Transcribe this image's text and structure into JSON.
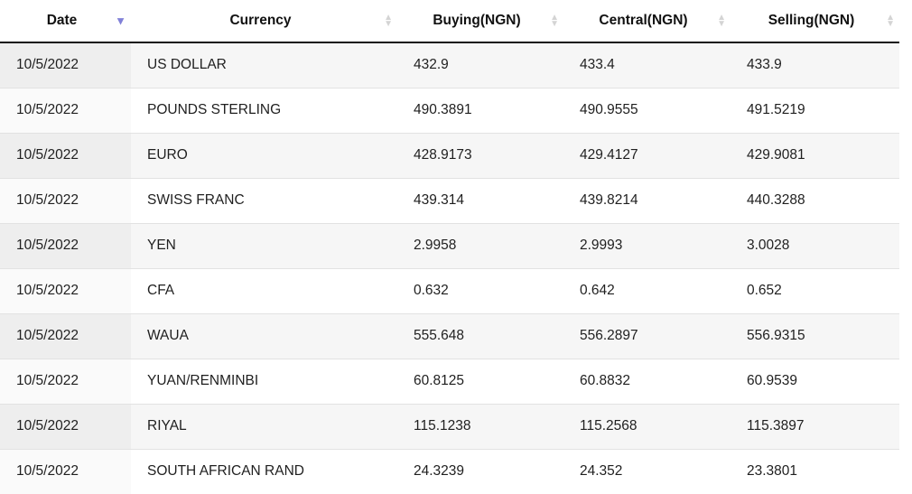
{
  "table": {
    "columns": [
      {
        "key": "date",
        "label": "Date",
        "sort": "desc"
      },
      {
        "key": "currency",
        "label": "Currency",
        "sort": "none"
      },
      {
        "key": "buying",
        "label": "Buying(NGN)",
        "sort": "none"
      },
      {
        "key": "central",
        "label": "Central(NGN)",
        "sort": "none"
      },
      {
        "key": "selling",
        "label": "Selling(NGN)",
        "sort": "none"
      }
    ],
    "rows": [
      {
        "date": "10/5/2022",
        "currency": "US DOLLAR",
        "buying": "432.9",
        "central": "433.4",
        "selling": "433.9"
      },
      {
        "date": "10/5/2022",
        "currency": "POUNDS STERLING",
        "buying": "490.3891",
        "central": "490.9555",
        "selling": "491.5219"
      },
      {
        "date": "10/5/2022",
        "currency": "EURO",
        "buying": "428.9173",
        "central": "429.4127",
        "selling": "429.9081"
      },
      {
        "date": "10/5/2022",
        "currency": "SWISS FRANC",
        "buying": "439.314",
        "central": "439.8214",
        "selling": "440.3288"
      },
      {
        "date": "10/5/2022",
        "currency": "YEN",
        "buying": "2.9958",
        "central": "2.9993",
        "selling": "3.0028"
      },
      {
        "date": "10/5/2022",
        "currency": "CFA",
        "buying": "0.632",
        "central": "0.642",
        "selling": "0.652"
      },
      {
        "date": "10/5/2022",
        "currency": "WAUA",
        "buying": "555.648",
        "central": "556.2897",
        "selling": "556.9315"
      },
      {
        "date": "10/5/2022",
        "currency": "YUAN/RENMINBI",
        "buying": "60.8125",
        "central": "60.8832",
        "selling": "60.9539"
      },
      {
        "date": "10/5/2022",
        "currency": "RIYAL",
        "buying": "115.1238",
        "central": "115.2568",
        "selling": "115.3897"
      },
      {
        "date": "10/5/2022",
        "currency": "SOUTH AFRICAN RAND",
        "buying": "24.3239",
        "central": "24.352",
        "selling": "23.3801"
      }
    ]
  },
  "icons": {
    "sort_up_glyph": "▲",
    "sort_down_glyph": "▼"
  },
  "colors": {
    "sort_active": "#8181d8",
    "sort_inactive": "#d4d4d4",
    "header_border": "#111111",
    "row_border": "#e2e2e2",
    "stripe_row": "#f6f6f6",
    "stripe_sorted_cell": "#eeeeee",
    "even_sorted_cell": "#fafafa"
  }
}
